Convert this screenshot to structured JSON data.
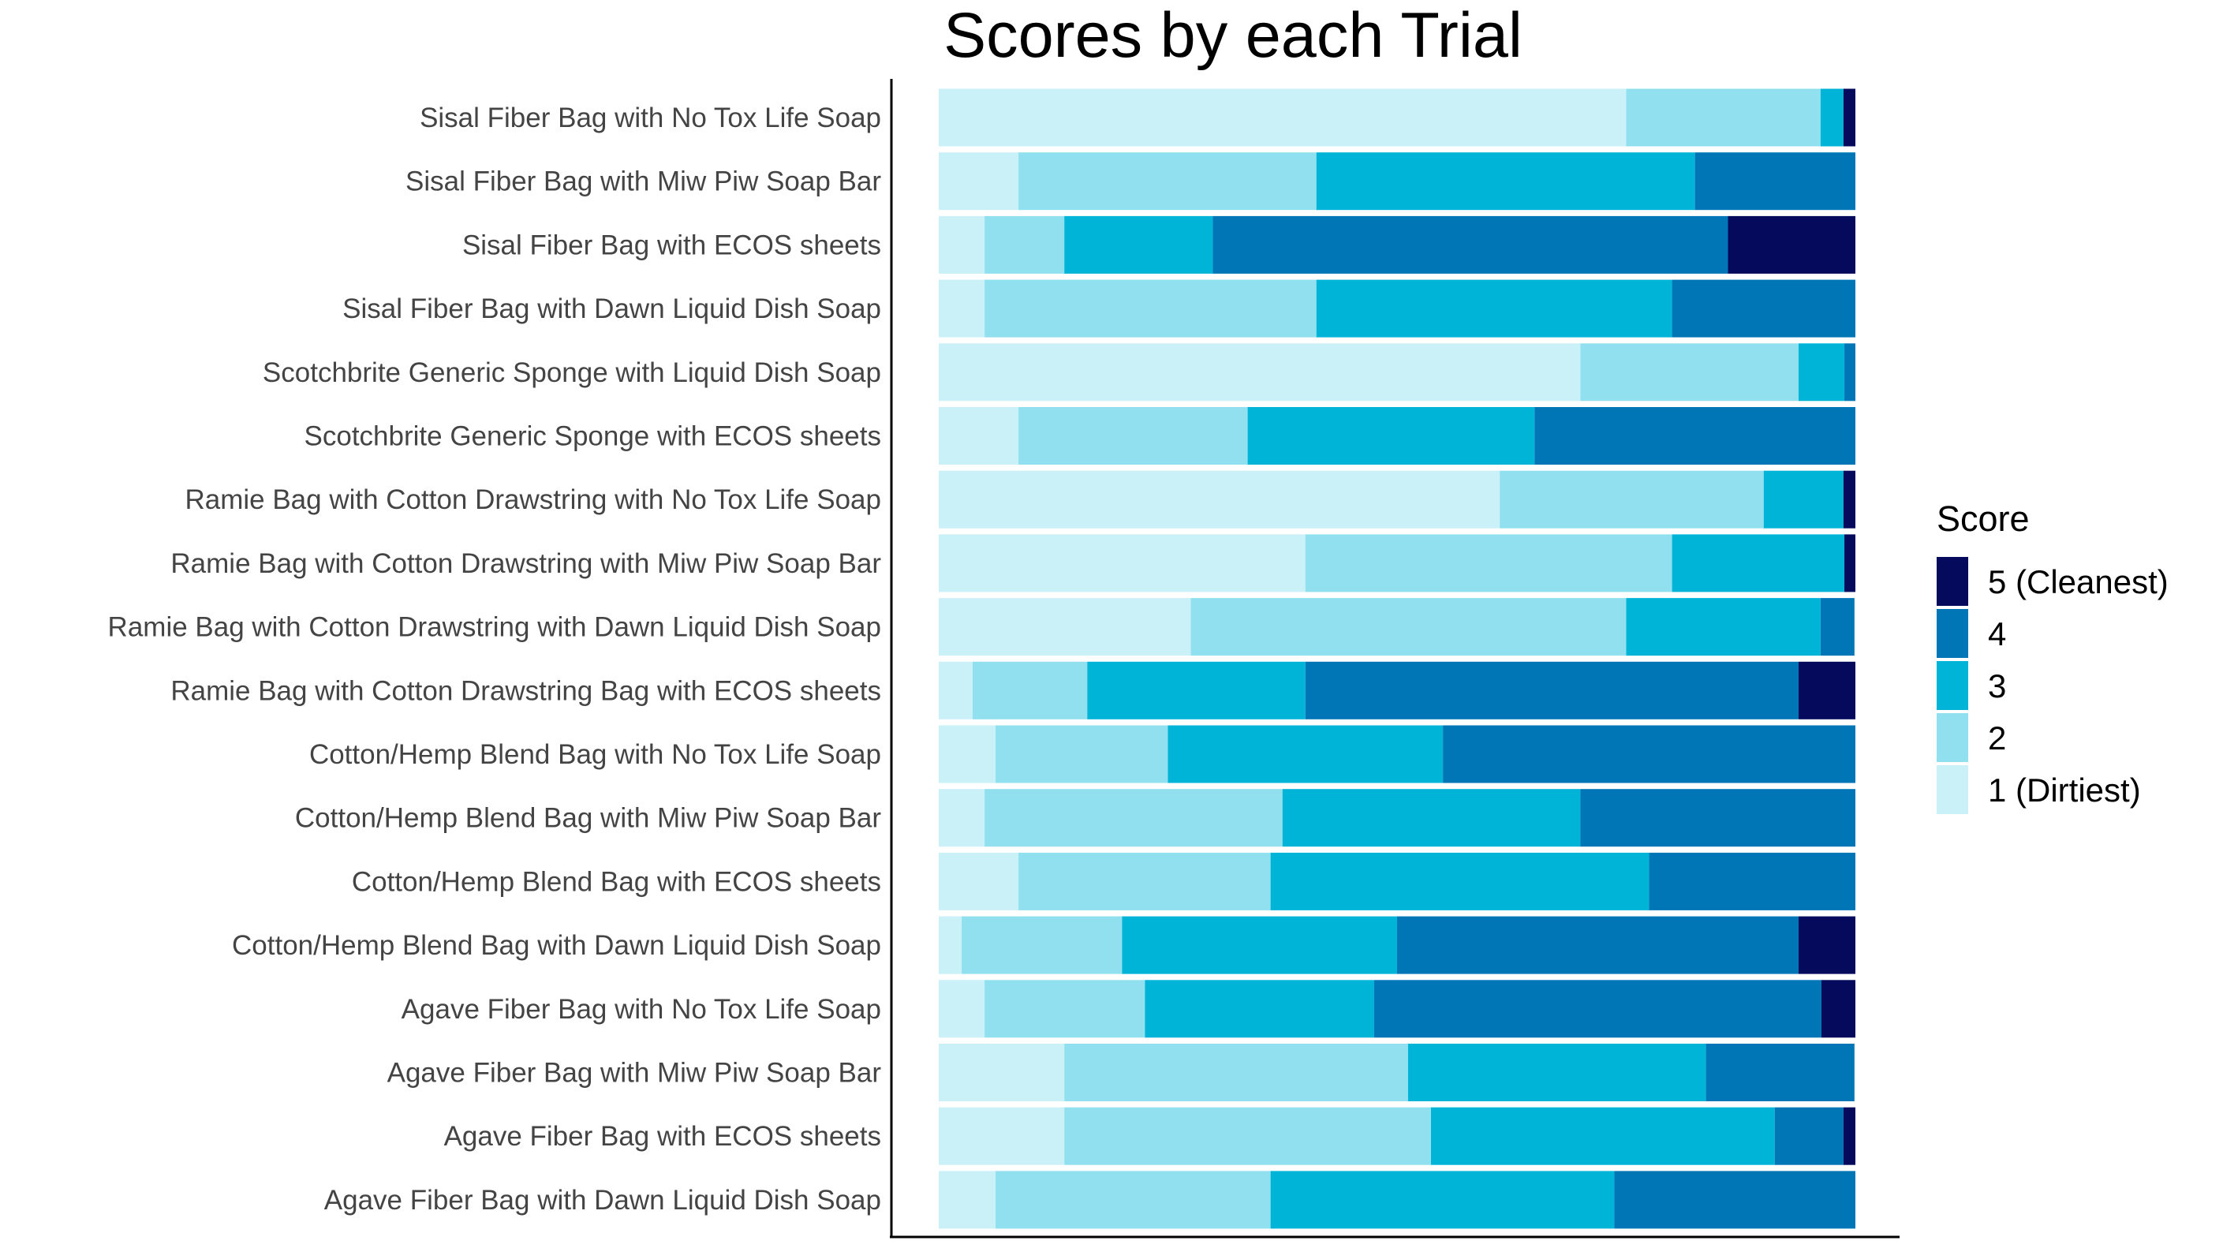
{
  "chart_data": {
    "type": "bar",
    "orientation": "horizontal",
    "stacked": "percent",
    "title": "Scores by each Trial",
    "xlabel": "",
    "ylabel": "",
    "xlim": [
      0,
      1
    ],
    "grid": false,
    "legend_position": "right",
    "legend": {
      "title": "Score",
      "entries": [
        {
          "label": "5 (Cleanest)",
          "color": "#050A5C"
        },
        {
          "label": "4",
          "color": "#0076B6"
        },
        {
          "label": "3",
          "color": "#00B4D8"
        },
        {
          "label": "2",
          "color": "#90E0EF"
        },
        {
          "label": "1 (Dirtiest)",
          "color": "#CAF0F8"
        }
      ]
    },
    "categories": [
      "Sisal Fiber Bag with No Tox Life Soap",
      "Sisal Fiber Bag with Miw Piw Soap Bar",
      "Sisal Fiber Bag with ECOS sheets",
      "Sisal Fiber Bag with Dawn Liquid Dish Soap",
      "Scotchbrite Generic Sponge with Liquid Dish Soap",
      "Scotchbrite Generic Sponge with ECOS sheets",
      "Ramie Bag with Cotton Drawstring with No Tox Life Soap",
      "Ramie Bag with Cotton Drawstring with Miw Piw Soap Bar",
      "Ramie Bag with Cotton Drawstring with Dawn Liquid Dish Soap",
      "Ramie Bag with Cotton Drawstring Bag with ECOS sheets",
      "Cotton/Hemp Blend Bag with No Tox Life Soap",
      "Cotton/Hemp Blend Bag with Miw Piw Soap Bar",
      "Cotton/Hemp Blend Bag with ECOS sheets",
      "Cotton/Hemp Blend Bag with Dawn Liquid Dish Soap",
      "Agave Fiber Bag with No Tox Life Soap",
      "Agave Fiber Bag with Miw Piw Soap Bar",
      "Agave Fiber Bag with ECOS sheets",
      "Agave Fiber Bag with Dawn Liquid Dish Soap"
    ],
    "series": [
      {
        "name": "1 (Dirtiest)",
        "color": "#CAF0F8",
        "values": [
          0.75,
          0.087,
          0.05,
          0.05,
          0.7,
          0.087,
          0.612,
          0.4,
          0.275,
          0.037,
          0.062,
          0.05,
          0.087,
          0.025,
          0.05,
          0.137,
          0.137,
          0.062
        ]
      },
      {
        "name": "2",
        "color": "#90E0EF",
        "values": [
          0.212,
          0.325,
          0.087,
          0.362,
          0.238,
          0.25,
          0.288,
          0.4,
          0.475,
          0.125,
          0.188,
          0.325,
          0.275,
          0.175,
          0.175,
          0.375,
          0.4,
          0.3
        ]
      },
      {
        "name": "3",
        "color": "#00B4D8",
        "values": [
          0.025,
          0.413,
          0.162,
          0.388,
          0.05,
          0.313,
          0.087,
          0.188,
          0.212,
          0.238,
          0.3,
          0.325,
          0.413,
          0.3,
          0.25,
          0.325,
          0.375,
          0.375
        ]
      },
      {
        "name": "4",
        "color": "#0076B6",
        "values": [
          0.0,
          0.175,
          0.562,
          0.2,
          0.012,
          0.35,
          0.0,
          0.0,
          0.037,
          0.538,
          0.45,
          0.3,
          0.225,
          0.438,
          0.488,
          0.162,
          0.075,
          0.263
        ]
      },
      {
        "name": "5 (Cleanest)",
        "color": "#050A5C",
        "values": [
          0.013,
          0.0,
          0.139,
          0.0,
          0.0,
          0.0,
          0.013,
          0.012,
          0.0,
          0.062,
          0.0,
          0.0,
          0.0,
          0.062,
          0.037,
          0.0,
          0.013,
          0.0
        ]
      }
    ]
  }
}
